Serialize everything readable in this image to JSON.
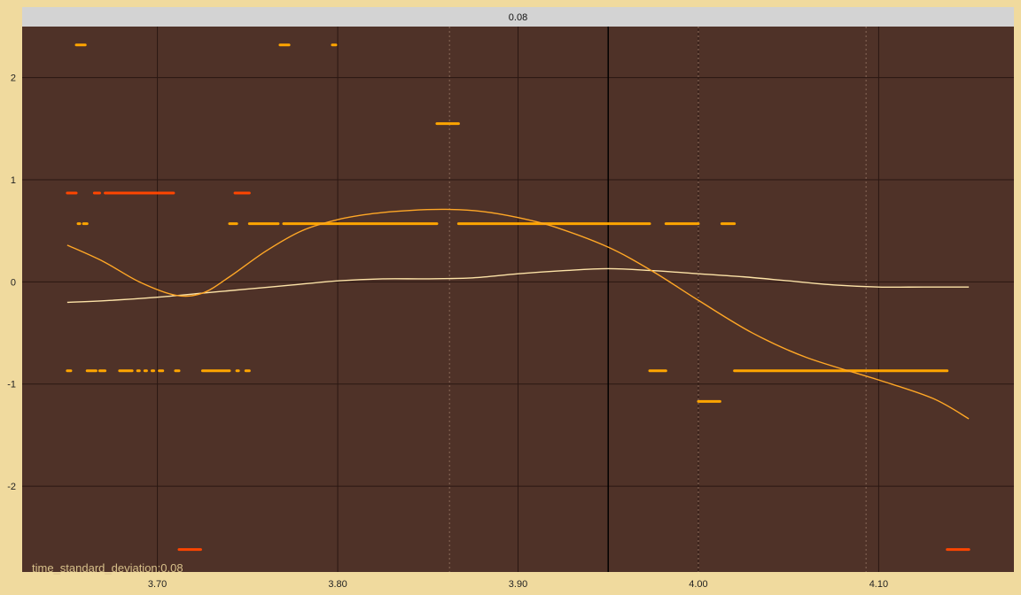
{
  "chart_data": {
    "type": "scatter",
    "strip_label": "0.08",
    "annotation": "time_standard_deviation:0.08",
    "xlim": [
      3.625,
      4.175
    ],
    "ylim": [
      -2.84,
      2.5
    ],
    "x_ticks": [
      3.7,
      3.8,
      3.9,
      4.0,
      4.1
    ],
    "x_tick_labels": [
      "3.70",
      "3.80",
      "3.90",
      "4.00",
      "4.10"
    ],
    "y_ticks": [
      2,
      1,
      0,
      -1,
      -2
    ],
    "y_tick_labels": [
      "2",
      "1",
      "0",
      "-1",
      "-2"
    ],
    "dotted_vlines": [
      3.862,
      4.0,
      4.093
    ],
    "solid_vline": 3.95,
    "grid": true,
    "colors": {
      "background": "#f0da9e",
      "panel": "#4f3228",
      "strip": "#d3d3d3",
      "grid": "#2a1712",
      "orange": "#ffa500",
      "red": "#ff4500",
      "smooth_light": "#fde3a7",
      "smooth_orange": "#ffa726"
    },
    "segments": [
      {
        "y": 2.32,
        "x0": 3.655,
        "x1": 3.66,
        "color": "orange"
      },
      {
        "y": 2.32,
        "x0": 3.768,
        "x1": 3.773,
        "color": "orange"
      },
      {
        "y": 2.32,
        "x0": 3.797,
        "x1": 3.799,
        "color": "orange"
      },
      {
        "y": 1.55,
        "x0": 3.855,
        "x1": 3.867,
        "color": "orange"
      },
      {
        "y": 0.87,
        "x0": 3.65,
        "x1": 3.655,
        "color": "red"
      },
      {
        "y": 0.87,
        "x0": 3.665,
        "x1": 3.668,
        "color": "red"
      },
      {
        "y": 0.87,
        "x0": 3.671,
        "x1": 3.709,
        "color": "red"
      },
      {
        "y": 0.87,
        "x0": 3.743,
        "x1": 3.751,
        "color": "red"
      },
      {
        "y": 0.57,
        "x0": 3.656,
        "x1": 3.657,
        "color": "orange"
      },
      {
        "y": 0.57,
        "x0": 3.659,
        "x1": 3.661,
        "color": "orange"
      },
      {
        "y": 0.57,
        "x0": 3.74,
        "x1": 3.744,
        "color": "orange"
      },
      {
        "y": 0.57,
        "x0": 3.751,
        "x1": 3.767,
        "color": "orange"
      },
      {
        "y": 0.57,
        "x0": 3.77,
        "x1": 3.855,
        "color": "orange"
      },
      {
        "y": 0.57,
        "x0": 3.867,
        "x1": 3.973,
        "color": "orange"
      },
      {
        "y": 0.57,
        "x0": 3.982,
        "x1": 4.0,
        "color": "orange"
      },
      {
        "y": 0.57,
        "x0": 4.013,
        "x1": 4.02,
        "color": "orange"
      },
      {
        "y": -0.87,
        "x0": 3.65,
        "x1": 3.652,
        "color": "orange"
      },
      {
        "y": -0.87,
        "x0": 3.661,
        "x1": 3.666,
        "color": "orange"
      },
      {
        "y": -0.87,
        "x0": 3.668,
        "x1": 3.671,
        "color": "orange"
      },
      {
        "y": -0.87,
        "x0": 3.679,
        "x1": 3.686,
        "color": "orange"
      },
      {
        "y": -0.87,
        "x0": 3.689,
        "x1": 3.69,
        "color": "orange"
      },
      {
        "y": -0.87,
        "x0": 3.693,
        "x1": 3.694,
        "color": "orange"
      },
      {
        "y": -0.87,
        "x0": 3.697,
        "x1": 3.698,
        "color": "orange"
      },
      {
        "y": -0.87,
        "x0": 3.701,
        "x1": 3.703,
        "color": "orange"
      },
      {
        "y": -0.87,
        "x0": 3.71,
        "x1": 3.712,
        "color": "orange"
      },
      {
        "y": -0.87,
        "x0": 3.725,
        "x1": 3.74,
        "color": "orange"
      },
      {
        "y": -0.87,
        "x0": 3.744,
        "x1": 3.745,
        "color": "orange"
      },
      {
        "y": -0.87,
        "x0": 3.749,
        "x1": 3.751,
        "color": "orange"
      },
      {
        "y": -0.87,
        "x0": 3.973,
        "x1": 3.982,
        "color": "orange"
      },
      {
        "y": -0.87,
        "x0": 4.02,
        "x1": 4.138,
        "color": "orange"
      },
      {
        "y": -1.17,
        "x0": 4.0,
        "x1": 4.012,
        "color": "orange"
      },
      {
        "y": -2.62,
        "x0": 3.712,
        "x1": 3.724,
        "color": "red"
      },
      {
        "y": -2.62,
        "x0": 4.138,
        "x1": 4.15,
        "color": "red"
      }
    ],
    "series": [
      {
        "color": "smooth_light",
        "x": [
          3.65,
          3.675,
          3.7,
          3.725,
          3.75,
          3.775,
          3.8,
          3.825,
          3.85,
          3.875,
          3.9,
          3.925,
          3.95,
          3.975,
          4.0,
          4.025,
          4.05,
          4.075,
          4.1,
          4.125,
          4.15
        ],
        "y": [
          -0.2,
          -0.18,
          -0.15,
          -0.11,
          -0.07,
          -0.03,
          0.01,
          0.03,
          0.03,
          0.04,
          0.08,
          0.11,
          0.13,
          0.11,
          0.08,
          0.05,
          0.01,
          -0.03,
          -0.05,
          -0.05,
          -0.05
        ]
      },
      {
        "color": "smooth_orange",
        "x": [
          3.65,
          3.67,
          3.69,
          3.71,
          3.725,
          3.74,
          3.76,
          3.78,
          3.8,
          3.82,
          3.84,
          3.86,
          3.88,
          3.9,
          3.92,
          3.95,
          3.975,
          4.0,
          4.03,
          4.06,
          4.1,
          4.13,
          4.15
        ],
        "y": [
          0.36,
          0.2,
          0.0,
          -0.13,
          -0.11,
          0.05,
          0.3,
          0.5,
          0.61,
          0.67,
          0.7,
          0.71,
          0.69,
          0.63,
          0.54,
          0.34,
          0.1,
          -0.18,
          -0.5,
          -0.74,
          -0.96,
          -1.14,
          -1.34
        ]
      }
    ]
  }
}
